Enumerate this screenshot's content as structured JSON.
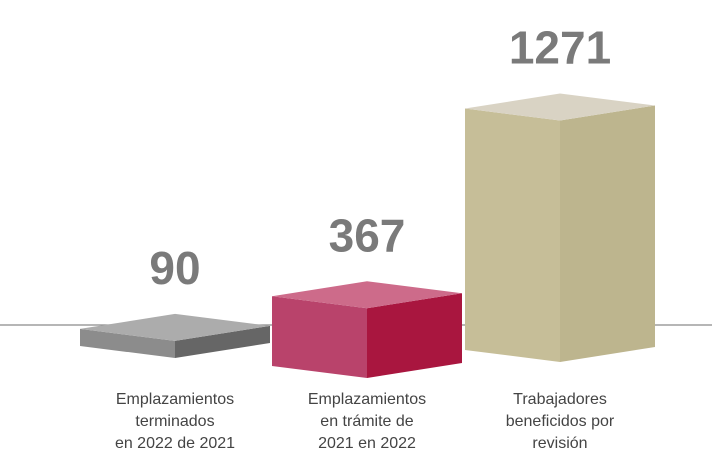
{
  "chart_data": {
    "type": "bar3d",
    "categories": [
      [
        "Emplazamientos",
        "terminados",
        "en 2022 de 2021"
      ],
      [
        "Emplazamientos",
        "en trámite de",
        "2021 en 2022"
      ],
      [
        "Trabajadores",
        "beneficidos por",
        "revisión"
      ]
    ],
    "values": [
      90,
      367,
      1271
    ],
    "colors": [
      [
        "#acacac",
        "#8c8c8c",
        "#666666"
      ],
      [
        "#cd6b8a",
        "#b9436b",
        "#a9163f"
      ],
      [
        "#d9d3c4",
        "#c6be98",
        "#bdb58e"
      ]
    ]
  }
}
